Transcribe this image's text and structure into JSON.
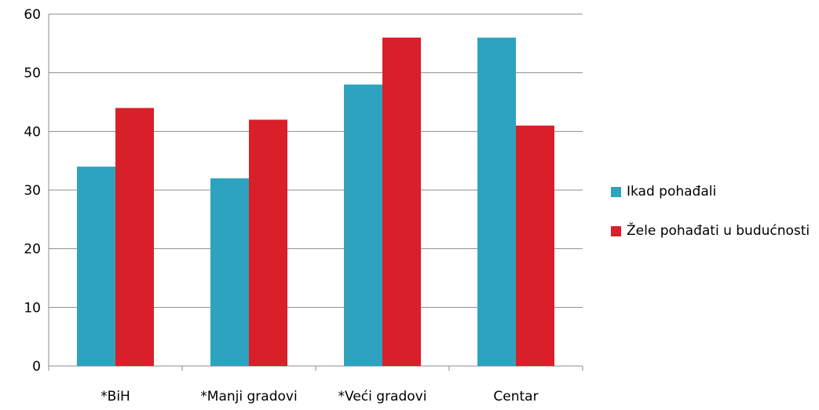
{
  "chart_data": {
    "type": "bar",
    "title": "",
    "xlabel": "",
    "ylabel": "",
    "categories": [
      "*BiH",
      "*Manji gradovi",
      "*Veći gradovi",
      "Centar"
    ],
    "series": [
      {
        "name": "Ikad pohađali",
        "color": "#2ea3bf",
        "values": [
          34,
          32,
          48,
          56
        ]
      },
      {
        "name": "Žele pohađati u budućnosti",
        "color": "#d81f2a",
        "values": [
          44,
          42,
          56,
          41
        ]
      }
    ],
    "ylim": [
      0,
      60
    ],
    "yticks": [
      "0",
      "10",
      "20",
      "30",
      "40",
      "50",
      "60"
    ],
    "grid": true,
    "legend_position": "right"
  }
}
